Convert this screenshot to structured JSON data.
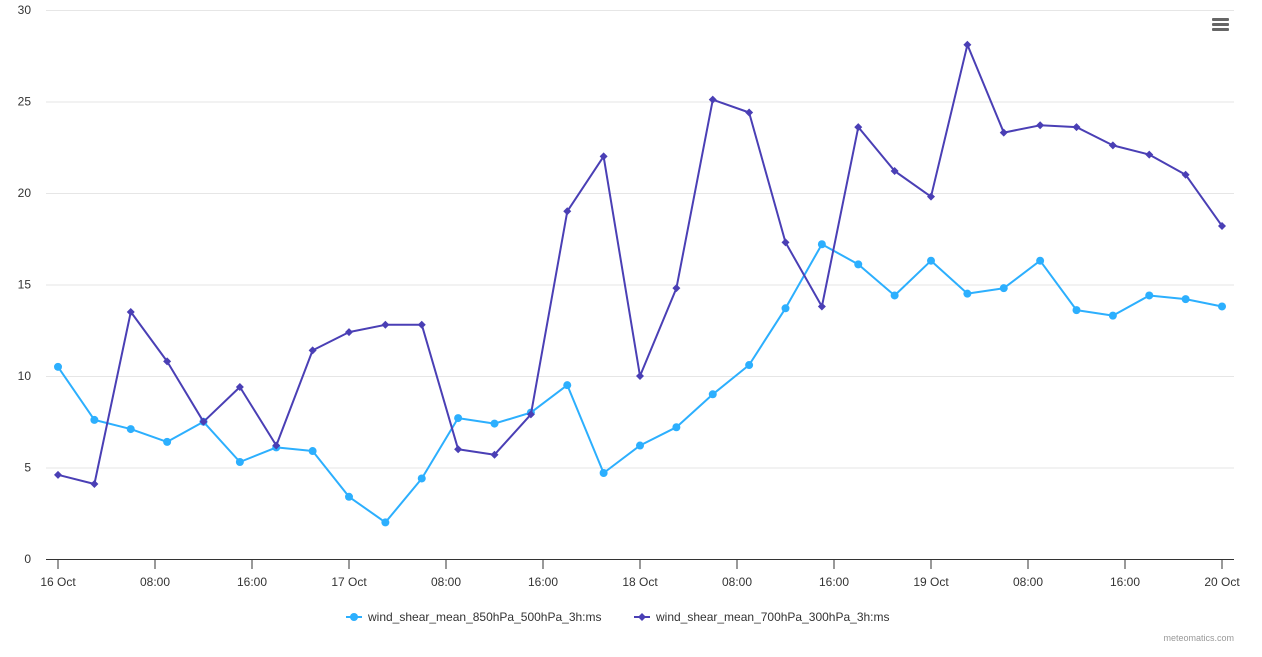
{
  "chart_data": {
    "type": "line",
    "title": "",
    "xlabel": "",
    "ylabel": "",
    "ylim": [
      0,
      30
    ],
    "yticks": [
      0,
      5,
      10,
      15,
      20,
      25,
      30
    ],
    "grid": true,
    "legend_position": "bottom",
    "x_tick_labels": [
      "16 Oct",
      "08:00",
      "16:00",
      "17 Oct",
      "08:00",
      "16:00",
      "18 Oct",
      "08:00",
      "16:00",
      "19 Oct",
      "08:00",
      "16:00",
      "20 Oct"
    ],
    "x": [
      "16 Oct 00:00",
      "16 Oct 03:00",
      "16 Oct 06:00",
      "16 Oct 09:00",
      "16 Oct 12:00",
      "16 Oct 15:00",
      "16 Oct 18:00",
      "16 Oct 21:00",
      "17 Oct 00:00",
      "17 Oct 03:00",
      "17 Oct 06:00",
      "17 Oct 09:00",
      "17 Oct 12:00",
      "17 Oct 15:00",
      "17 Oct 18:00",
      "17 Oct 21:00",
      "18 Oct 00:00",
      "18 Oct 03:00",
      "18 Oct 06:00",
      "18 Oct 09:00",
      "18 Oct 12:00",
      "18 Oct 15:00",
      "18 Oct 18:00",
      "18 Oct 21:00",
      "19 Oct 00:00",
      "19 Oct 03:00",
      "19 Oct 06:00",
      "19 Oct 09:00",
      "19 Oct 12:00",
      "19 Oct 15:00",
      "19 Oct 18:00",
      "19 Oct 21:00",
      "20 Oct 00:00"
    ],
    "series": [
      {
        "name": "wind_shear_mean_850hPa_500hPa_3h:ms",
        "color": "#2caffe",
        "marker": "circle",
        "values": [
          10.5,
          7.6,
          7.1,
          6.4,
          7.5,
          5.3,
          6.1,
          5.9,
          3.4,
          2.0,
          4.4,
          7.7,
          7.4,
          8.0,
          9.5,
          4.7,
          6.2,
          7.2,
          9.0,
          10.6,
          13.7,
          17.2,
          16.1,
          14.4,
          16.3,
          14.5,
          14.8,
          16.3,
          13.6,
          13.3,
          14.4,
          14.2,
          13.8
        ]
      },
      {
        "name": "wind_shear_mean_700hPa_300hPa_3h:ms",
        "color": "#4a3fb5",
        "marker": "diamond",
        "values": [
          4.6,
          4.1,
          13.5,
          10.8,
          7.5,
          9.4,
          6.2,
          11.4,
          12.4,
          12.8,
          12.8,
          6.0,
          5.7,
          7.9,
          19.0,
          22.0,
          10.0,
          14.8,
          25.1,
          24.4,
          17.3,
          13.8,
          23.6,
          21.2,
          19.8,
          28.1,
          23.3,
          23.7,
          23.6,
          22.6,
          22.1,
          21.0,
          18.2
        ]
      }
    ]
  },
  "ui": {
    "menu_icon": "hamburger-menu-icon",
    "credits": "meteomatics.com"
  }
}
